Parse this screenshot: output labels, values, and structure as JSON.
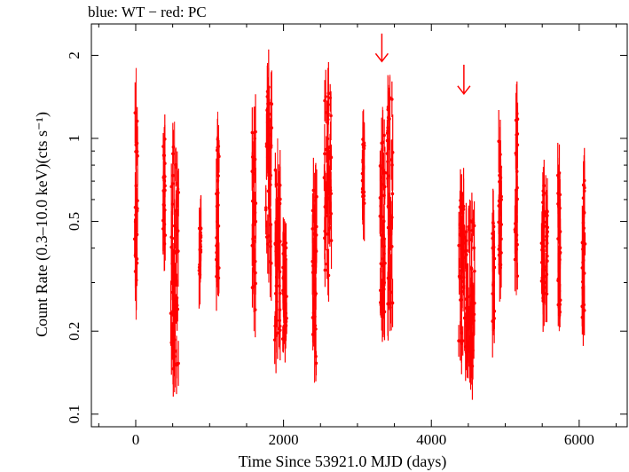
{
  "legend_text": "blue: WT − red: PC",
  "chart_data": {
    "type": "scatter",
    "xlabel": "Time Since 53921.0 MJD (days)",
    "ylabel": "Count Rate (0.3–10.0 keV)(cts s⁻¹)",
    "xlim": [
      -600,
      6650
    ],
    "ylim": [
      0.09,
      2.6
    ],
    "y_scale": "log",
    "x_ticks": [
      0,
      2000,
      4000,
      6000
    ],
    "x_tick_labels": [
      "0",
      "2000",
      "4000",
      "6000"
    ],
    "y_ticks": [
      0.1,
      0.2,
      0.5,
      1,
      2
    ],
    "y_tick_labels": [
      "0.1",
      "0.2",
      "0.5",
      "1",
      "2"
    ],
    "grid": false,
    "series": [
      {
        "color": "#ff0000",
        "clusters": [
          {
            "x": 5,
            "width": 40,
            "y_min": 0.22,
            "y_max": 1.8
          },
          {
            "x": 385,
            "width": 30,
            "y_min": 0.33,
            "y_max": 1.1
          },
          {
            "x": 525,
            "width": 110,
            "y_min": 0.12,
            "y_max": 1.15
          },
          {
            "x": 870,
            "width": 25,
            "y_min": 0.3,
            "y_max": 0.55
          },
          {
            "x": 1110,
            "width": 40,
            "y_min": 0.27,
            "y_max": 1.25
          },
          {
            "x": 1600,
            "width": 50,
            "y_min": 0.2,
            "y_max": 1.3
          },
          {
            "x": 1800,
            "width": 80,
            "y_min": 0.3,
            "y_max": 1.8
          },
          {
            "x": 1920,
            "width": 80,
            "y_min": 0.16,
            "y_max": 1.0
          },
          {
            "x": 2020,
            "width": 60,
            "y_min": 0.17,
            "y_max": 0.5
          },
          {
            "x": 2420,
            "width": 60,
            "y_min": 0.13,
            "y_max": 0.75
          },
          {
            "x": 2600,
            "width": 100,
            "y_min": 0.27,
            "y_max": 1.8
          },
          {
            "x": 3080,
            "width": 30,
            "y_min": 0.43,
            "y_max": 1.1
          },
          {
            "x": 3340,
            "width": 70,
            "y_min": 0.2,
            "y_max": 1.3
          },
          {
            "x": 3440,
            "width": 80,
            "y_min": 0.2,
            "y_max": 1.7
          },
          {
            "x": 4410,
            "width": 80,
            "y_min": 0.16,
            "y_max": 0.72
          },
          {
            "x": 4520,
            "width": 130,
            "y_min": 0.13,
            "y_max": 0.6
          },
          {
            "x": 4840,
            "width": 30,
            "y_min": 0.2,
            "y_max": 0.55
          },
          {
            "x": 4930,
            "width": 40,
            "y_min": 0.3,
            "y_max": 1.1
          },
          {
            "x": 5150,
            "width": 40,
            "y_min": 0.27,
            "y_max": 1.45
          },
          {
            "x": 5510,
            "width": 40,
            "y_min": 0.23,
            "y_max": 0.75
          },
          {
            "x": 5560,
            "width": 30,
            "y_min": 0.25,
            "y_max": 0.65
          },
          {
            "x": 5730,
            "width": 40,
            "y_min": 0.2,
            "y_max": 0.85
          },
          {
            "x": 6060,
            "width": 40,
            "y_min": 0.2,
            "y_max": 0.8
          }
        ]
      }
    ],
    "annotations": [
      {
        "type": "arrow-down",
        "x": 3330,
        "y_top": 2.4,
        "y_bottom": 1.9,
        "color": "#ff0000"
      },
      {
        "type": "arrow-down",
        "x": 4440,
        "y_top": 1.85,
        "y_bottom": 1.45,
        "color": "#ff0000"
      }
    ]
  }
}
